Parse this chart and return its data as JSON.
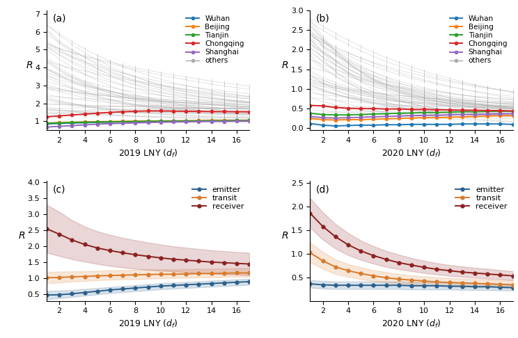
{
  "days": [
    1,
    2,
    3,
    4,
    5,
    6,
    7,
    8,
    9,
    10,
    11,
    12,
    13,
    14,
    15,
    16,
    17
  ],
  "cities_2019": {
    "Wuhan": [
      0.85,
      0.88,
      0.9,
      0.92,
      0.94,
      0.95,
      0.97,
      0.98,
      0.99,
      1.0,
      1.01,
      1.02,
      1.02,
      1.03,
      1.03,
      1.04,
      1.05
    ],
    "Beijing": [
      0.9,
      0.93,
      0.95,
      0.97,
      0.98,
      0.99,
      1.0,
      1.01,
      1.02,
      1.02,
      1.03,
      1.03,
      1.04,
      1.04,
      1.05,
      1.05,
      1.06
    ],
    "Tianjin": [
      0.88,
      0.91,
      0.93,
      0.95,
      0.96,
      0.97,
      0.98,
      0.99,
      1.0,
      1.01,
      1.01,
      1.02,
      1.02,
      1.03,
      1.03,
      1.04,
      1.04
    ],
    "Chongqing": [
      1.25,
      1.3,
      1.35,
      1.4,
      1.45,
      1.5,
      1.53,
      1.56,
      1.58,
      1.58,
      1.57,
      1.56,
      1.55,
      1.54,
      1.54,
      1.53,
      1.53
    ],
    "Shanghai": [
      0.68,
      0.72,
      0.76,
      0.8,
      0.84,
      0.87,
      0.89,
      0.91,
      0.93,
      0.95,
      0.96,
      0.97,
      0.98,
      0.99,
      0.99,
      1.0,
      1.0
    ]
  },
  "cities_2020": {
    "Wuhan": [
      0.12,
      0.08,
      0.06,
      0.07,
      0.08,
      0.08,
      0.09,
      0.09,
      0.1,
      0.1,
      0.1,
      0.1,
      0.11,
      0.11,
      0.11,
      0.11,
      0.1
    ],
    "Beijing": [
      0.25,
      0.22,
      0.21,
      0.22,
      0.22,
      0.23,
      0.24,
      0.25,
      0.26,
      0.27,
      0.27,
      0.28,
      0.29,
      0.3,
      0.31,
      0.32,
      0.32
    ],
    "Tianjin": [
      0.38,
      0.35,
      0.34,
      0.34,
      0.35,
      0.36,
      0.37,
      0.38,
      0.39,
      0.4,
      0.4,
      0.41,
      0.42,
      0.42,
      0.43,
      0.43,
      0.43
    ],
    "Chongqing": [
      0.58,
      0.57,
      0.53,
      0.51,
      0.5,
      0.5,
      0.49,
      0.49,
      0.48,
      0.48,
      0.47,
      0.47,
      0.46,
      0.46,
      0.45,
      0.45,
      0.44
    ],
    "Shanghai": [
      0.3,
      0.27,
      0.26,
      0.27,
      0.28,
      0.29,
      0.3,
      0.31,
      0.32,
      0.33,
      0.33,
      0.34,
      0.35,
      0.35,
      0.36,
      0.37,
      0.37
    ]
  },
  "emitter_2019": [
    0.48,
    0.49,
    0.52,
    0.56,
    0.6,
    0.64,
    0.67,
    0.7,
    0.73,
    0.76,
    0.78,
    0.8,
    0.82,
    0.84,
    0.86,
    0.88,
    0.9
  ],
  "emitter_2019_lo": [
    0.35,
    0.38,
    0.42,
    0.46,
    0.5,
    0.54,
    0.57,
    0.6,
    0.63,
    0.66,
    0.68,
    0.7,
    0.72,
    0.74,
    0.76,
    0.78,
    0.8
  ],
  "emitter_2019_hi": [
    0.61,
    0.62,
    0.64,
    0.67,
    0.7,
    0.73,
    0.76,
    0.79,
    0.82,
    0.85,
    0.87,
    0.89,
    0.91,
    0.93,
    0.95,
    0.97,
    0.99
  ],
  "transit_2019": [
    1.02,
    1.03,
    1.05,
    1.06,
    1.08,
    1.09,
    1.1,
    1.11,
    1.12,
    1.13,
    1.13,
    1.14,
    1.15,
    1.15,
    1.16,
    1.17,
    1.17
  ],
  "transit_2019_lo": [
    0.85,
    0.87,
    0.9,
    0.92,
    0.94,
    0.96,
    0.97,
    0.98,
    0.99,
    1.0,
    1.01,
    1.02,
    1.03,
    1.03,
    1.04,
    1.05,
    1.05
  ],
  "transit_2019_hi": [
    1.2,
    1.21,
    1.22,
    1.22,
    1.24,
    1.25,
    1.26,
    1.27,
    1.28,
    1.28,
    1.28,
    1.29,
    1.3,
    1.3,
    1.31,
    1.32,
    1.32
  ],
  "receiver_2019": [
    2.55,
    2.38,
    2.2,
    2.06,
    1.95,
    1.87,
    1.8,
    1.74,
    1.69,
    1.64,
    1.6,
    1.57,
    1.54,
    1.51,
    1.49,
    1.47,
    1.45
  ],
  "receiver_2019_lo": [
    1.8,
    1.7,
    1.6,
    1.52,
    1.45,
    1.39,
    1.34,
    1.3,
    1.27,
    1.24,
    1.22,
    1.19,
    1.17,
    1.15,
    1.13,
    1.12,
    1.1
  ],
  "receiver_2019_hi": [
    3.3,
    3.08,
    2.82,
    2.62,
    2.47,
    2.36,
    2.27,
    2.19,
    2.12,
    2.06,
    2.0,
    1.96,
    1.92,
    1.88,
    1.85,
    1.82,
    1.8
  ],
  "emitter_2020": [
    0.36,
    0.34,
    0.33,
    0.33,
    0.33,
    0.33,
    0.33,
    0.33,
    0.32,
    0.32,
    0.32,
    0.31,
    0.31,
    0.3,
    0.3,
    0.29,
    0.28
  ],
  "emitter_2020_lo": [
    0.28,
    0.26,
    0.25,
    0.25,
    0.25,
    0.25,
    0.25,
    0.25,
    0.24,
    0.24,
    0.24,
    0.24,
    0.23,
    0.23,
    0.23,
    0.22,
    0.22
  ],
  "emitter_2020_hi": [
    0.44,
    0.42,
    0.41,
    0.41,
    0.41,
    0.41,
    0.41,
    0.41,
    0.4,
    0.4,
    0.4,
    0.39,
    0.39,
    0.38,
    0.38,
    0.37,
    0.36
  ],
  "transit_2020": [
    1.02,
    0.85,
    0.72,
    0.64,
    0.58,
    0.53,
    0.49,
    0.46,
    0.44,
    0.42,
    0.4,
    0.39,
    0.38,
    0.37,
    0.36,
    0.35,
    0.34
  ],
  "transit_2020_lo": [
    0.82,
    0.68,
    0.57,
    0.51,
    0.46,
    0.42,
    0.39,
    0.37,
    0.35,
    0.33,
    0.32,
    0.31,
    0.3,
    0.29,
    0.29,
    0.28,
    0.27
  ],
  "transit_2020_hi": [
    1.24,
    1.04,
    0.88,
    0.78,
    0.71,
    0.65,
    0.61,
    0.57,
    0.54,
    0.52,
    0.5,
    0.48,
    0.47,
    0.46,
    0.45,
    0.44,
    0.43
  ],
  "receiver_2020": [
    1.86,
    1.58,
    1.36,
    1.19,
    1.06,
    0.96,
    0.88,
    0.81,
    0.76,
    0.71,
    0.67,
    0.64,
    0.61,
    0.59,
    0.57,
    0.55,
    0.53
  ],
  "receiver_2020_lo": [
    1.55,
    1.3,
    1.11,
    0.97,
    0.87,
    0.79,
    0.72,
    0.67,
    0.63,
    0.59,
    0.56,
    0.53,
    0.51,
    0.49,
    0.47,
    0.46,
    0.44
  ],
  "receiver_2020_hi": [
    2.18,
    1.88,
    1.63,
    1.44,
    1.28,
    1.16,
    1.06,
    0.98,
    0.91,
    0.85,
    0.8,
    0.76,
    0.73,
    0.7,
    0.68,
    0.65,
    0.63
  ],
  "city_colors": {
    "Wuhan": "#1f77b4",
    "Beijing": "#ff7f0e",
    "Tianjin": "#2ca02c",
    "Chongqing": "#d62728",
    "Shanghai": "#9467bd"
  },
  "emitter_color": "#2b5f8c",
  "transit_color": "#d97b2c",
  "receiver_color": "#8b2020",
  "others_color": "#aaaaaa",
  "xticks": [
    2,
    4,
    6,
    8,
    10,
    12,
    14,
    16
  ],
  "panel_labels": [
    "(a)",
    "(b)",
    "(c)",
    "(d)"
  ],
  "xlabels": [
    "2019 LNY $(d_f)$",
    "2020 LNY $(d_f)$",
    "2019 LNY $(d_f)$",
    "2020 LNY $(d_f)$"
  ]
}
